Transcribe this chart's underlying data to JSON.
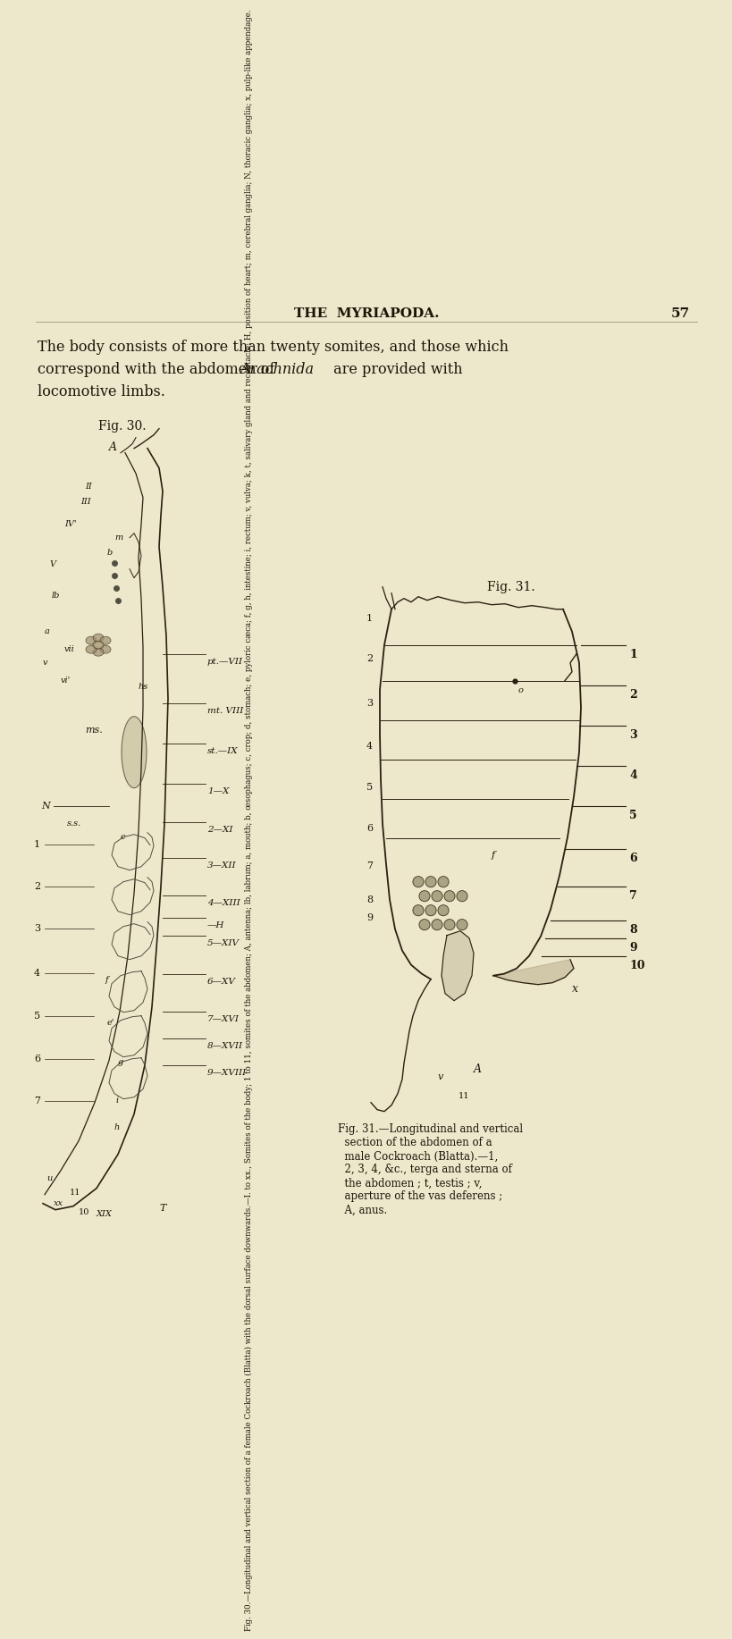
{
  "background_color": "#ede8cc",
  "page_title": "THE  MYRIAPODA.",
  "page_number": "57",
  "body_text_line1": "The body consists of more than twenty somites, and those which",
  "body_text_line2a": "correspond with the abdomen of ",
  "body_text_italic": "Arachnida",
  "body_text_line2b": " are provided with",
  "body_text_line3": "locomotive limbs.",
  "fig30_label": "Fig. 30.",
  "fig31_label": "Fig. 31.",
  "caption30": "Fig. 30.—Longitudinal and vertical section of a female Cockroach (Blatta) with the dorsal surface downwards.—I. to xx., Somites of the body; 1 to 11, somites of the abdomen; A, antenna; lb, labrum; a, mouth; b, œsophagus; c, crop; d, stomach; e, pyloric cæca; f, g, h, intestine; i, rectum; v, vulva; k, t, salivary gland and receptacle; H, position of heart; m, cerebral ganglia; N, thoracic ganglia; x, pulp-like appendage.",
  "caption31": "Fig. 31.—Longitudinal and vertical\n  section of the abdomen of a\n  male Cockroach (Blatta).—1,\n  2, 3, 4, &c., terga and sterna of\n  the abdomen ; t, testis ; v,\n  aperture of the vas deferens ;\n  A, anus.",
  "text_color": "#1c1408",
  "line_color": "#2a2010",
  "fig30_right_labels": [
    "pt.—VII",
    "mt. VIII",
    "st.—IX",
    "1—X",
    "2—XI",
    "3—XII",
    "4—XIII",
    "—H",
    "5—XIV",
    "6—XV",
    "7—XVI",
    "8—XVII",
    "9—XVIII"
  ],
  "fig30_right_y": [
    440,
    495,
    540,
    585,
    628,
    668,
    710,
    735,
    755,
    798,
    840,
    870,
    900
  ],
  "fig31_right_nums": [
    "1",
    "2",
    "3",
    "4",
    "5",
    "6",
    "7",
    "8",
    "9",
    "10"
  ],
  "fig31_right_y": [
    430,
    475,
    520,
    565,
    610,
    658,
    700,
    738,
    758,
    778
  ],
  "fig31_left_nums": [
    "1",
    "2",
    "3",
    "4",
    "5",
    "6",
    "7",
    "8",
    "9"
  ],
  "fig31_left_y": [
    395,
    440,
    490,
    538,
    584,
    630,
    672,
    710,
    730
  ]
}
